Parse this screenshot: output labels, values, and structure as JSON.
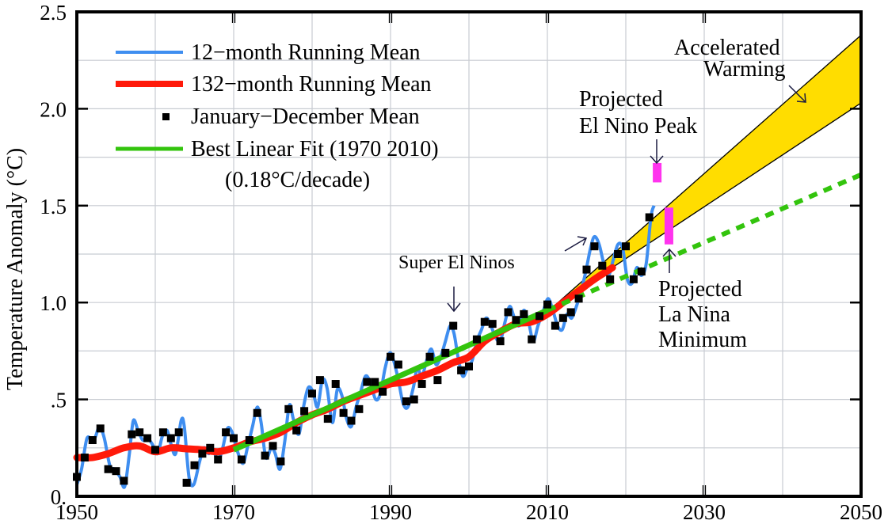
{
  "chart_data": {
    "type": "line",
    "title": "",
    "xlabel": "",
    "ylabel": "Temperature Anomaly (°C)",
    "xlim": [
      1950,
      2050
    ],
    "ylim": [
      0,
      2.5
    ],
    "grid": true,
    "x_ticks": [
      1950,
      1970,
      1990,
      2010,
      2030,
      2050
    ],
    "x_tick_labels": [
      "1950",
      "1970",
      "1990",
      "2010",
      "2030",
      "2050"
    ],
    "y_ticks": [
      0,
      0.5,
      1.0,
      1.5,
      2.0,
      2.5
    ],
    "y_tick_labels": [
      "0.",
      ".5",
      "1.0",
      "1.5",
      "2.0",
      "2.5"
    ],
    "legend_position": "top-left",
    "legend": [
      {
        "label": "12−month Running Mean",
        "color": "#3f8ef0",
        "style": "line"
      },
      {
        "label": "132−month Running Mean",
        "color": "#ff1a0a",
        "style": "thick-line"
      },
      {
        "label": "January−December Mean",
        "color": "#000000",
        "style": "square"
      },
      {
        "label": "Best Linear Fit (1970  2010)",
        "color": "#33c40d",
        "style": "line"
      }
    ],
    "legend_note": "(0.18°C/decade)",
    "series": [
      {
        "name": "January−December Mean",
        "color": "#000000",
        "x": [
          1950,
          1951,
          1952,
          1953,
          1954,
          1955,
          1956,
          1957,
          1958,
          1959,
          1960,
          1961,
          1962,
          1963,
          1964,
          1965,
          1966,
          1967,
          1968,
          1969,
          1970,
          1971,
          1972,
          1973,
          1974,
          1975,
          1976,
          1977,
          1978,
          1979,
          1980,
          1981,
          1982,
          1983,
          1984,
          1985,
          1986,
          1987,
          1988,
          1989,
          1990,
          1991,
          1992,
          1993,
          1994,
          1995,
          1996,
          1997,
          1998,
          1999,
          2000,
          2001,
          2002,
          2003,
          2004,
          2005,
          2006,
          2007,
          2008,
          2009,
          2010,
          2011,
          2012,
          2013,
          2014,
          2015,
          2016,
          2017,
          2018,
          2019,
          2020,
          2021,
          2022,
          2023
        ],
        "values": [
          0.1,
          0.2,
          0.29,
          0.35,
          0.14,
          0.13,
          0.08,
          0.32,
          0.33,
          0.3,
          0.24,
          0.33,
          0.3,
          0.33,
          0.07,
          0.16,
          0.22,
          0.25,
          0.19,
          0.33,
          0.3,
          0.19,
          0.29,
          0.43,
          0.21,
          0.26,
          0.18,
          0.45,
          0.34,
          0.44,
          0.53,
          0.6,
          0.4,
          0.58,
          0.43,
          0.39,
          0.45,
          0.59,
          0.59,
          0.54,
          0.72,
          0.68,
          0.49,
          0.5,
          0.58,
          0.72,
          0.6,
          0.74,
          0.88,
          0.65,
          0.67,
          0.81,
          0.9,
          0.89,
          0.8,
          0.95,
          0.91,
          0.94,
          0.81,
          0.93,
          0.99,
          0.88,
          0.92,
          0.95,
          1.02,
          1.17,
          1.29,
          1.19,
          1.12,
          1.25,
          1.29,
          1.12,
          1.16,
          1.44
        ]
      },
      {
        "name": "12−month Running Mean",
        "color": "#3f8ef0",
        "x": [
          1950.0,
          1950.6,
          1951.3,
          1952.0,
          1952.4,
          1952.9,
          1953.5,
          1954.2,
          1954.8,
          1955.5,
          1956.1,
          1956.7,
          1957.2,
          1957.8,
          1958.4,
          1959.0,
          1959.6,
          1960.3,
          1960.9,
          1961.5,
          1962.0,
          1962.6,
          1963.3,
          1963.7,
          1964.3,
          1964.9,
          1965.6,
          1966.2,
          1966.8,
          1967.4,
          1968.0,
          1968.6,
          1969.2,
          1969.8,
          1970.5,
          1971.2,
          1971.8,
          1972.4,
          1973.0,
          1973.5,
          1974.1,
          1974.8,
          1975.3,
          1975.9,
          1976.5,
          1977.1,
          1977.6,
          1978.3,
          1978.9,
          1979.5,
          1980.1,
          1980.7,
          1981.3,
          1981.9,
          1982.6,
          1983.2,
          1983.8,
          1984.4,
          1985.0,
          1985.6,
          1986.2,
          1986.8,
          1987.4,
          1988.1,
          1988.7,
          1989.3,
          1989.9,
          1990.4,
          1991.0,
          1991.6,
          1992.2,
          1992.9,
          1993.4,
          1994.0,
          1994.6,
          1995.2,
          1995.8,
          1996.4,
          1997.0,
          1997.6,
          1998.1,
          1998.6,
          1999.2,
          1999.8,
          2000.4,
          2001.0,
          2001.6,
          2002.2,
          2002.8,
          2003.4,
          2004.0,
          2004.6,
          2005.2,
          2005.8,
          2006.4,
          2007.0,
          2007.6,
          2008.2,
          2008.8,
          2009.5,
          2010.1,
          2010.7,
          2011.3,
          2011.9,
          2012.5,
          2013.1,
          2013.7,
          2014.3,
          2014.9,
          2015.5,
          2016.0,
          2016.6,
          2017.2,
          2017.8,
          2018.4,
          2019.0,
          2019.6,
          2020.2,
          2020.8,
          2021.4,
          2022.0,
          2022.6,
          2023.2,
          2023.6
        ],
        "values": [
          0.06,
          0.14,
          0.3,
          0.28,
          0.31,
          0.36,
          0.3,
          0.16,
          0.14,
          0.1,
          0.05,
          0.22,
          0.39,
          0.34,
          0.29,
          0.3,
          0.27,
          0.22,
          0.31,
          0.34,
          0.27,
          0.22,
          0.39,
          0.36,
          0.1,
          0.06,
          0.17,
          0.25,
          0.22,
          0.24,
          0.18,
          0.25,
          0.35,
          0.33,
          0.23,
          0.17,
          0.26,
          0.36,
          0.46,
          0.38,
          0.2,
          0.25,
          0.22,
          0.14,
          0.28,
          0.47,
          0.4,
          0.32,
          0.46,
          0.56,
          0.54,
          0.46,
          0.6,
          0.56,
          0.38,
          0.55,
          0.52,
          0.4,
          0.36,
          0.46,
          0.54,
          0.62,
          0.59,
          0.5,
          0.53,
          0.66,
          0.74,
          0.7,
          0.6,
          0.48,
          0.46,
          0.56,
          0.66,
          0.62,
          0.7,
          0.76,
          0.68,
          0.72,
          0.8,
          0.88,
          0.84,
          0.72,
          0.62,
          0.66,
          0.7,
          0.8,
          0.86,
          0.92,
          0.88,
          0.82,
          0.8,
          0.9,
          0.98,
          0.92,
          0.88,
          0.96,
          0.9,
          0.8,
          0.88,
          0.96,
          1.02,
          0.96,
          0.88,
          0.86,
          0.94,
          0.92,
          0.98,
          1.06,
          1.16,
          1.28,
          1.34,
          1.3,
          1.2,
          1.14,
          1.22,
          1.3,
          1.28,
          1.12,
          1.1,
          1.18,
          1.14,
          1.2,
          1.44,
          1.5
        ]
      },
      {
        "name": "132−month Running Mean",
        "color": "#ff1a0a",
        "x": [
          1950,
          1952,
          1954,
          1956,
          1958,
          1960,
          1962,
          1964,
          1966,
          1968,
          1970,
          1972,
          1974,
          1976,
          1978,
          1980,
          1982,
          1984,
          1986,
          1988,
          1990,
          1992,
          1994,
          1996,
          1998,
          2000,
          2002,
          2004,
          2006,
          2008,
          2010,
          2012,
          2014,
          2016,
          2018.3
        ],
        "values": [
          0.2,
          0.2,
          0.22,
          0.25,
          0.26,
          0.23,
          0.25,
          0.245,
          0.24,
          0.23,
          0.25,
          0.28,
          0.3,
          0.33,
          0.38,
          0.42,
          0.45,
          0.49,
          0.52,
          0.55,
          0.58,
          0.59,
          0.62,
          0.65,
          0.69,
          0.72,
          0.8,
          0.85,
          0.89,
          0.9,
          0.94,
          1.0,
          1.06,
          1.12,
          1.18
        ]
      },
      {
        "name": "Best Linear Fit (1970  2010)",
        "color": "#33c40d",
        "x": [
          1970,
          2010
        ],
        "values": [
          0.24,
          0.96
        ]
      },
      {
        "name": "Linear Fit Extrapolation",
        "color": "#33c40d",
        "style": "dotted",
        "x": [
          2010,
          2050
        ],
        "values": [
          0.96,
          1.66
        ]
      }
    ],
    "bands": [
      {
        "name": "Accelerated Warming",
        "color": "#ffdd00",
        "x": [
          2010.8,
          2050
        ],
        "upper": [
          0.98,
          2.38
        ],
        "lower": [
          0.98,
          2.03
        ]
      }
    ],
    "markers": [
      {
        "name": "Projected El Nino Peak",
        "color": "#ff33ee",
        "x": 2024.0,
        "y_range": [
          1.62,
          1.72
        ]
      },
      {
        "name": "Projected La Nina Minimum",
        "color": "#ff33ee",
        "x": 2025.5,
        "y_range": [
          1.3,
          1.49
        ]
      }
    ],
    "annotations": [
      {
        "id": "super-el-ninos",
        "lines": [
          "Super El Ninos"
        ]
      },
      {
        "id": "el-nino-peak",
        "lines": [
          "Projected",
          "El Nino Peak"
        ]
      },
      {
        "id": "la-nina-min",
        "lines": [
          "Projected",
          "La Nina",
          "Minimum"
        ]
      },
      {
        "id": "accelerated",
        "lines": [
          "Accelerated",
          "Warming"
        ]
      }
    ]
  }
}
